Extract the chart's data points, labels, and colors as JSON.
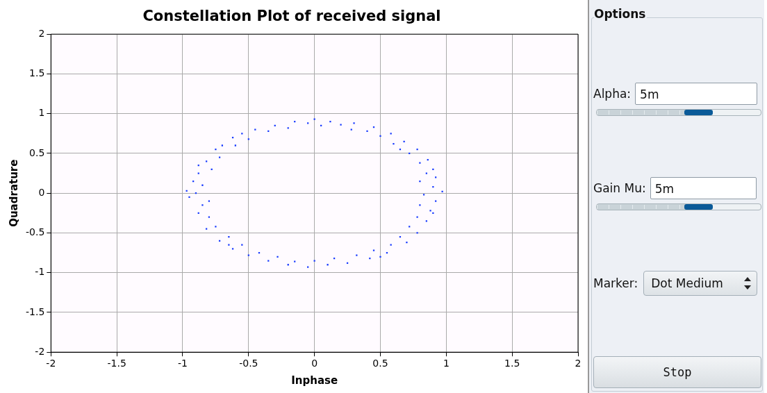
{
  "chart_data": [
    {
      "type": "scatter",
      "title": "Constellation Plot of received signal",
      "xlabel": "Inphase",
      "ylabel": "Quadrature",
      "color": "#1a3cff",
      "marker": "square",
      "grid": true,
      "xlim": [
        -2,
        2
      ],
      "ylim": [
        -2,
        2
      ],
      "xticks": [
        -2,
        -1.5,
        -1,
        -0.5,
        0,
        0.5,
        1,
        1.5,
        2
      ],
      "yticks": [
        -2,
        -1.5,
        -1,
        -0.5,
        0,
        0.5,
        1,
        1.5,
        2
      ],
      "x": [
        -0.9,
        -0.85,
        -0.95,
        -0.8,
        -0.88,
        -0.78,
        -0.82,
        -0.72,
        -0.7,
        -0.6,
        -0.62,
        -0.5,
        -0.45,
        -0.35,
        -0.3,
        -0.2,
        -0.15,
        -0.05,
        0.0,
        0.05,
        0.12,
        0.2,
        0.28,
        0.3,
        0.4,
        0.45,
        0.5,
        0.58,
        0.6,
        0.68,
        0.72,
        0.78,
        0.8,
        0.86,
        0.85,
        0.92,
        0.8,
        0.9,
        0.97,
        0.83,
        0.92,
        0.8,
        0.88,
        0.78,
        0.85,
        0.72,
        0.78,
        0.65,
        0.7,
        0.58,
        0.55,
        0.45,
        0.42,
        0.32,
        0.25,
        0.15,
        0.1,
        0.0,
        -0.05,
        -0.15,
        -0.2,
        -0.28,
        -0.35,
        -0.42,
        -0.5,
        -0.55,
        -0.62,
        -0.65,
        -0.72,
        -0.75,
        -0.82,
        -0.8,
        -0.88,
        -0.85,
        -0.97,
        -0.92,
        -0.88,
        -0.75,
        -0.55,
        0.65,
        0.9,
        0.9,
        0.5,
        -0.65
      ],
      "values": [
        0.0,
        0.1,
        -0.05,
        -0.1,
        0.25,
        0.3,
        0.4,
        0.45,
        0.6,
        0.6,
        0.7,
        0.68,
        0.8,
        0.78,
        0.85,
        0.82,
        0.9,
        0.88,
        0.93,
        0.85,
        0.9,
        0.86,
        0.8,
        0.88,
        0.78,
        0.83,
        0.72,
        0.75,
        0.62,
        0.65,
        0.5,
        0.55,
        0.38,
        0.42,
        0.25,
        0.2,
        0.15,
        0.08,
        0.02,
        -0.02,
        -0.1,
        -0.15,
        -0.22,
        -0.3,
        -0.35,
        -0.42,
        -0.5,
        -0.55,
        -0.62,
        -0.65,
        -0.75,
        -0.72,
        -0.82,
        -0.78,
        -0.88,
        -0.82,
        -0.9,
        -0.85,
        -0.93,
        -0.86,
        -0.9,
        -0.8,
        -0.85,
        -0.75,
        -0.78,
        -0.65,
        -0.7,
        -0.55,
        -0.6,
        -0.42,
        -0.45,
        -0.3,
        -0.25,
        -0.15,
        0.03,
        0.15,
        0.35,
        0.55,
        0.75,
        0.55,
        0.3,
        -0.25,
        -0.8,
        -0.65
      ]
    },
    {
      "type": "other",
      "annotations": [
        "Options",
        "Alpha:",
        "5m",
        "Gain Mu:",
        "5m",
        "Marker:",
        "Dot Medium",
        "Stop"
      ]
    }
  ]
}
